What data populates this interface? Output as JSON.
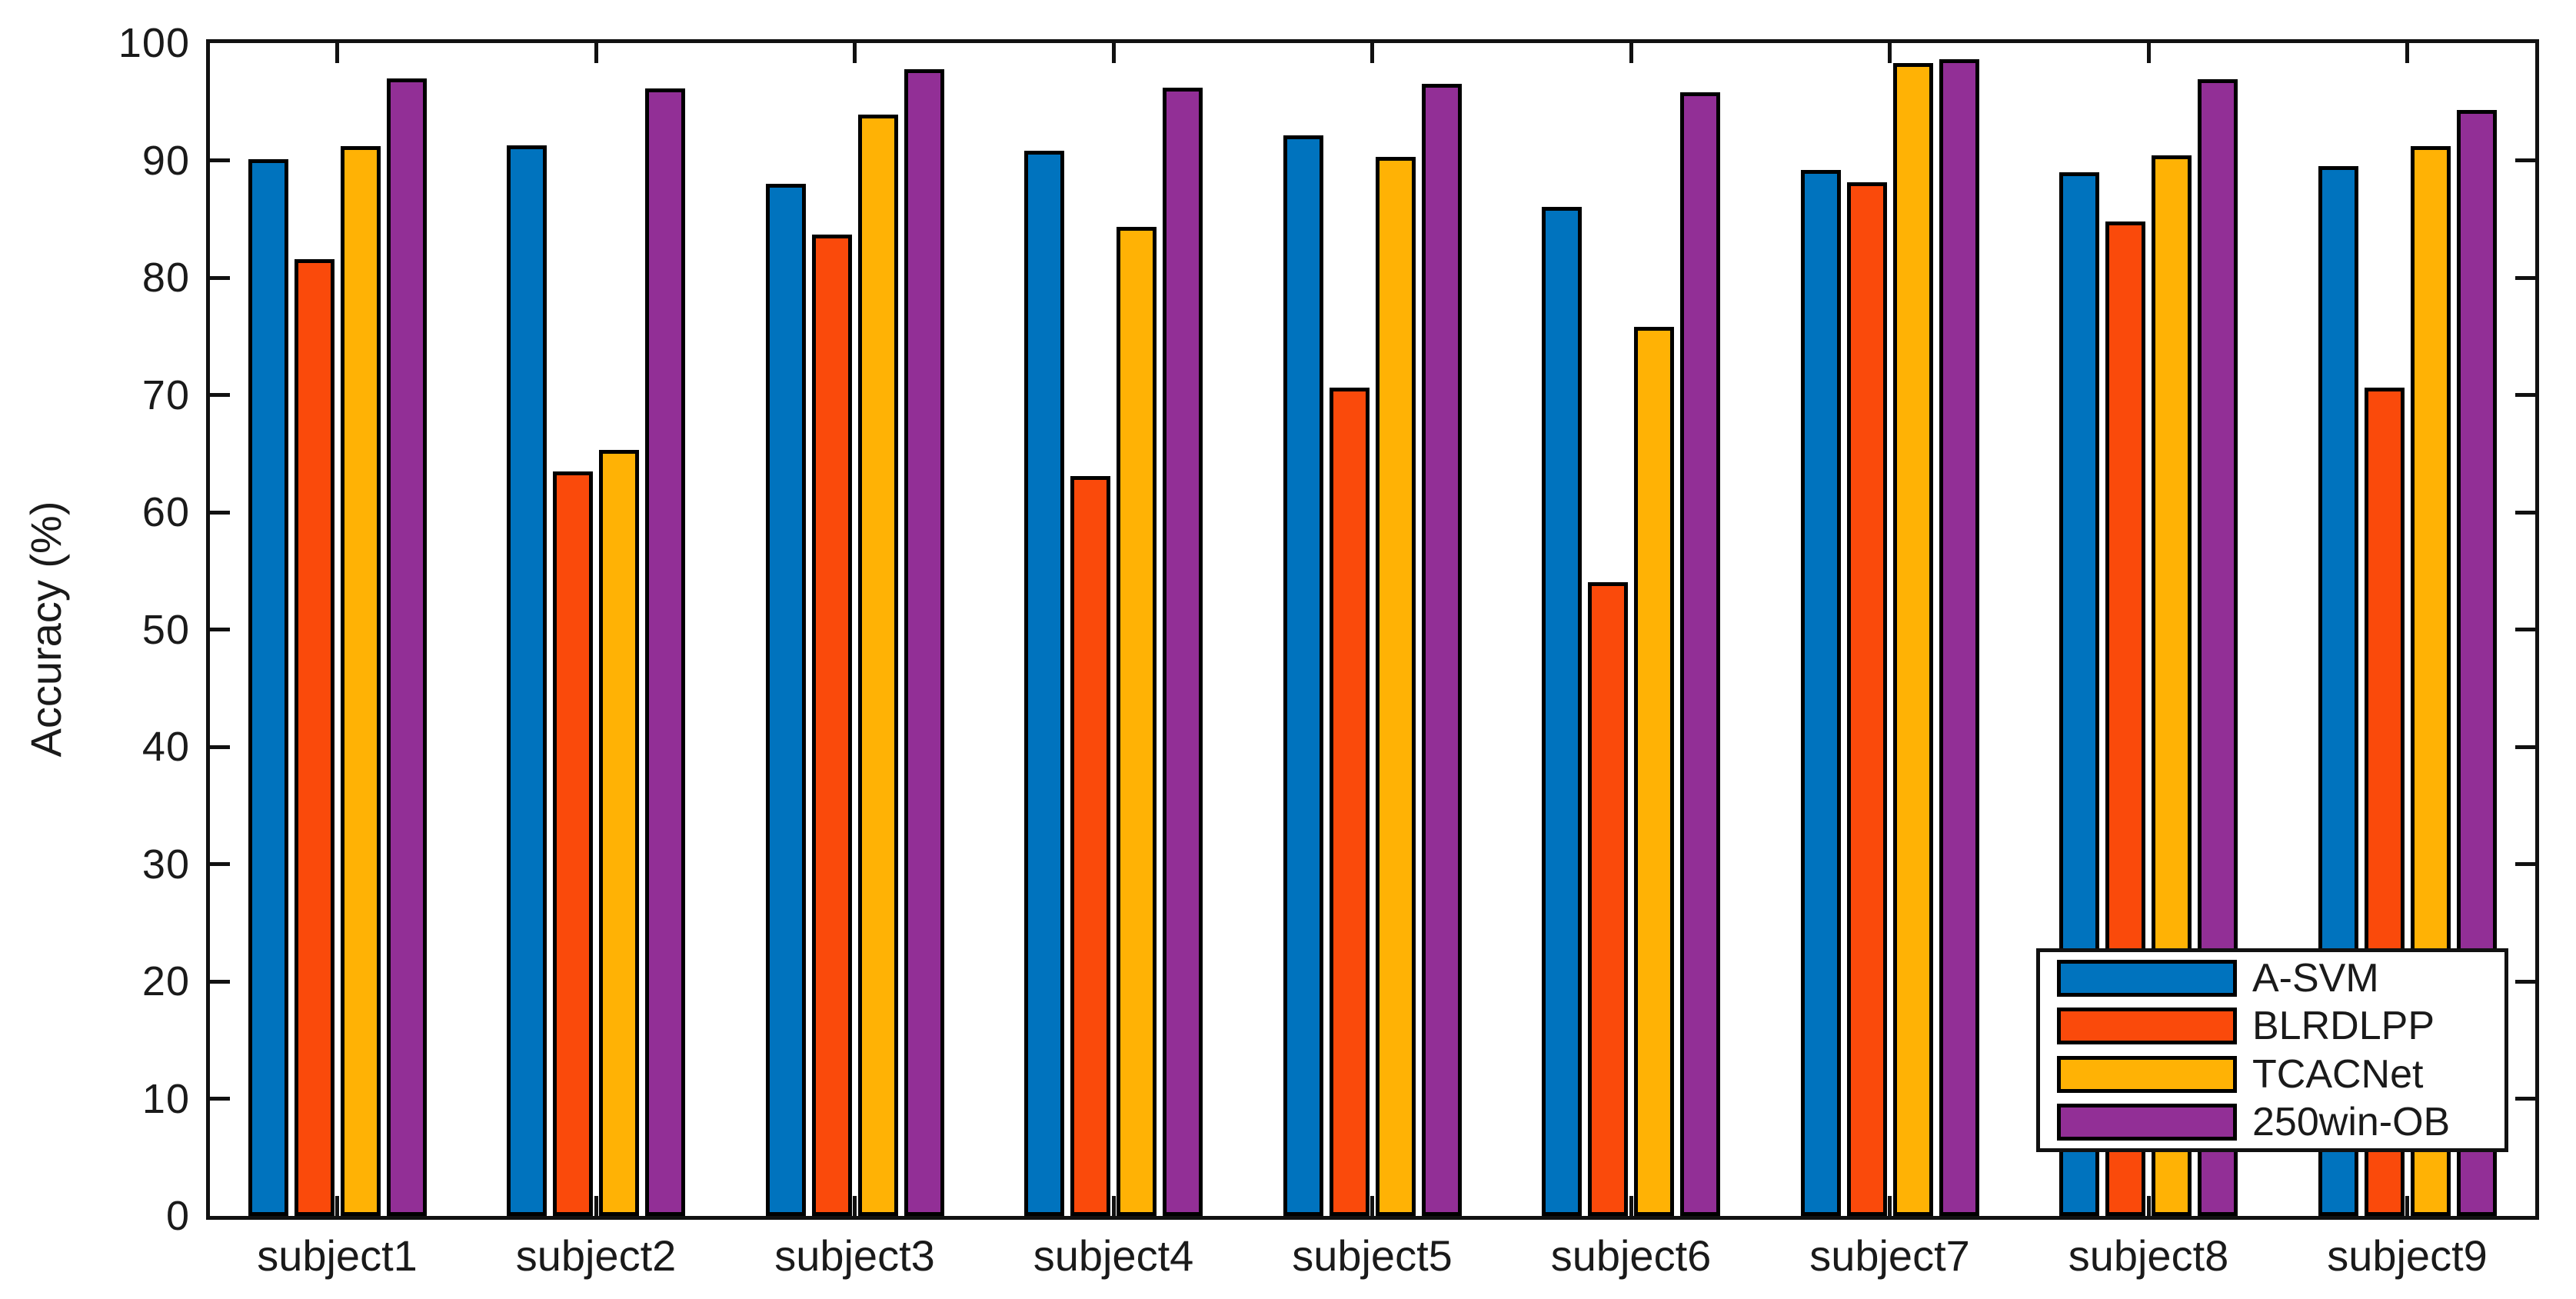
{
  "figure": {
    "background": "#FFFFFF",
    "bar_edge_color": "#000000",
    "axis_color": "#111111"
  },
  "chart_data": {
    "type": "bar",
    "title": "",
    "xlabel": "",
    "ylabel": "Accuracy (%)",
    "ylim": [
      0,
      100
    ],
    "yticks": [
      0,
      10,
      20,
      30,
      40,
      50,
      60,
      70,
      80,
      90,
      100
    ],
    "grid": false,
    "legend_position": "lower-right-inside",
    "categories": [
      "subject1",
      "subject2",
      "subject3",
      "subject4",
      "subject5",
      "subject6",
      "subject7",
      "subject8",
      "subject9"
    ],
    "series": [
      {
        "name": "A-SVM",
        "color": "#0073BE",
        "values": [
          90.1,
          91.3,
          88.0,
          90.8,
          92.1,
          86.0,
          89.2,
          89.0,
          89.5
        ]
      },
      {
        "name": "BLRDLPP",
        "color": "#FA4A0B",
        "values": [
          81.6,
          63.5,
          83.7,
          63.1,
          70.6,
          54.0,
          88.1,
          84.8,
          70.6
        ]
      },
      {
        "name": "TCACNet",
        "color": "#FFB205",
        "values": [
          91.2,
          65.3,
          93.9,
          84.3,
          90.3,
          75.8,
          98.3,
          90.4,
          91.2
        ]
      },
      {
        "name": "250win-OB",
        "color": "#922F96",
        "values": [
          97.0,
          96.1,
          97.8,
          96.2,
          96.5,
          95.8,
          98.6,
          96.9,
          94.3
        ]
      }
    ]
  }
}
